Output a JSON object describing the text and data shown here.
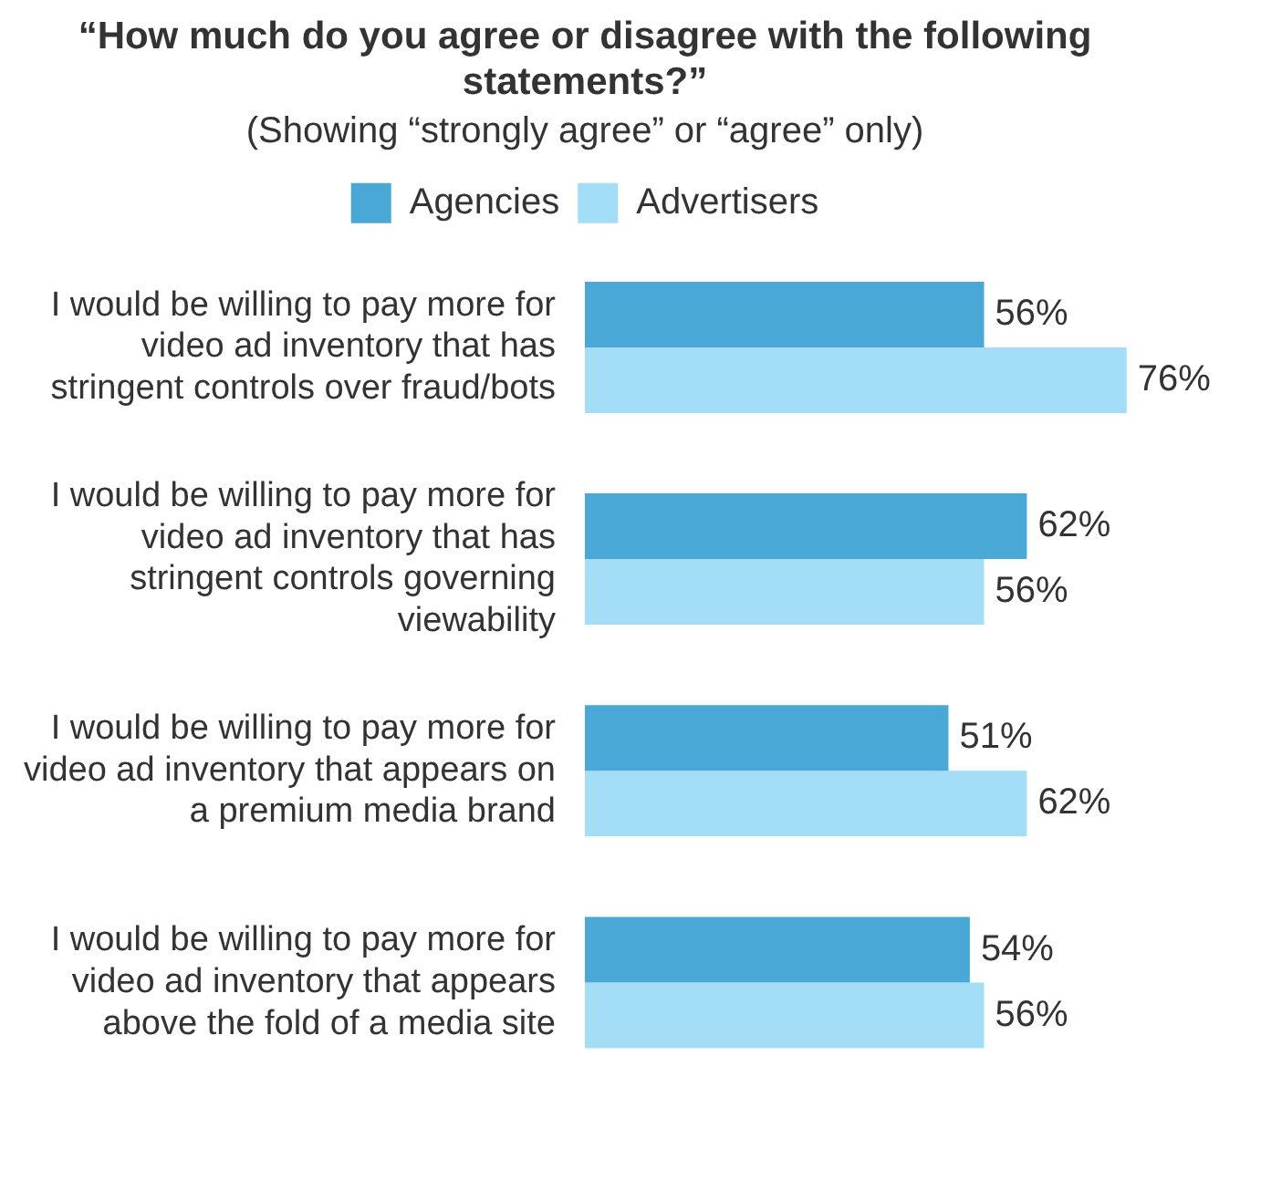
{
  "chart_data": {
    "type": "bar",
    "orientation": "horizontal",
    "title": "“How much do you agree or disagree with the following statements?”",
    "subtitle": "(Showing “strongly agree” or “agree” only)",
    "categories": [
      "I would be willing to pay more for video ad inventory that has stringent controls over fraud/bots",
      "I would be willing to pay more for video ad inventory that has stringent controls governing viewability",
      "I would be willing to pay more for video ad inventory that appears on a premium media brand",
      "I would be willing to pay more for video ad inventory that appears above the fold of a media site"
    ],
    "series": [
      {
        "name": "Agencies",
        "color": "#4aa8d6",
        "values": [
          56,
          62,
          51,
          54
        ],
        "value_labels": [
          "56%",
          "62%",
          "51%",
          "54%"
        ]
      },
      {
        "name": "Advertisers",
        "color": "#a3ddf6",
        "values": [
          76,
          56,
          62,
          56
        ],
        "value_labels": [
          "76%",
          "56%",
          "62%",
          "56%"
        ]
      }
    ],
    "tick_labels": "y",
    "legend": "top"
  }
}
